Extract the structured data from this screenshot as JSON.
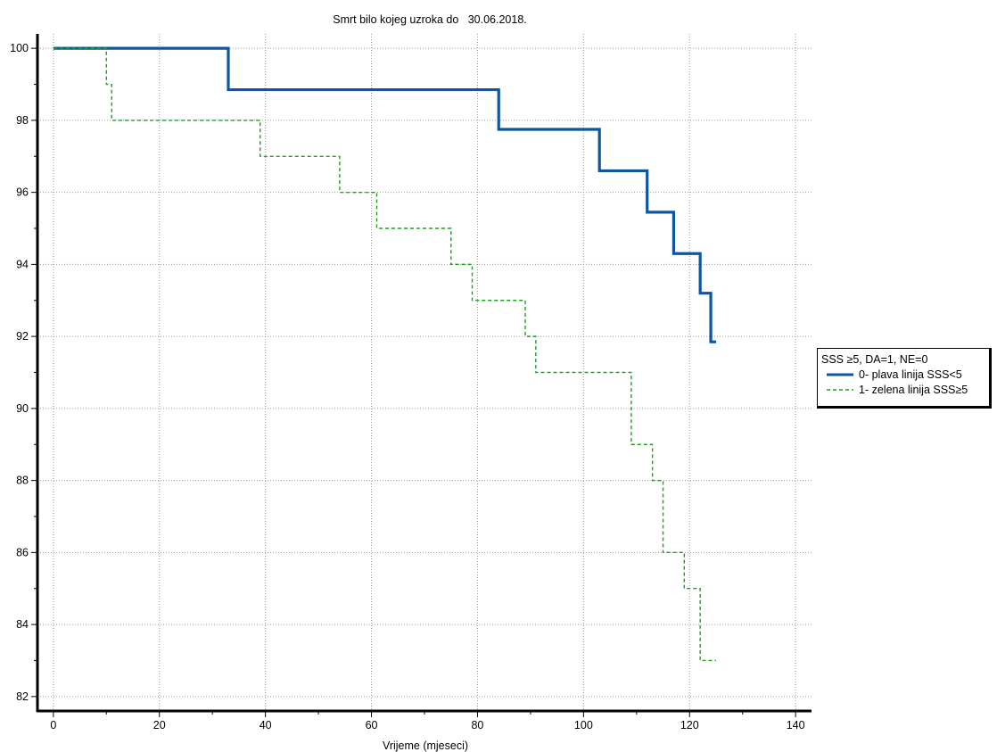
{
  "chart_data": {
    "type": "line",
    "step": true,
    "title": "Smrt bilo kojeg uzroka do   30.06.2018.",
    "xlabel": "Vrijeme (mjeseci)",
    "ylabel": "",
    "xlim": [
      -3,
      143
    ],
    "ylim": [
      81.6,
      100.4
    ],
    "x_ticks": [
      0,
      20,
      40,
      60,
      80,
      100,
      120,
      140
    ],
    "y_ticks": [
      82,
      84,
      86,
      88,
      90,
      92,
      94,
      96,
      98,
      100
    ],
    "x_tick_labels": [
      "0",
      "20",
      "40",
      "60",
      "80",
      "100",
      "120",
      "140"
    ],
    "y_tick_labels": [
      "82",
      "84",
      "86",
      "88",
      "90",
      "92",
      "94",
      "96",
      "98",
      "100"
    ],
    "grid": true,
    "legend_title": "SSS ≥5, DA=1, NE=0",
    "legend_position": "right",
    "series": [
      {
        "name": "0- plava linija SSS<5",
        "color": "#0d56a0",
        "style": "solid",
        "x": [
          0,
          33,
          84,
          103,
          112,
          117,
          122,
          124,
          125
        ],
        "y": [
          100,
          98.85,
          97.75,
          96.6,
          95.45,
          94.3,
          93.2,
          91.85,
          91.85
        ]
      },
      {
        "name": "1- zelena linija SSS≥5",
        "color": "#1aa31a",
        "style": "dashed",
        "x": [
          0,
          10,
          11,
          39,
          54,
          61,
          75,
          79,
          89,
          91,
          109,
          113,
          115,
          119,
          122,
          125
        ],
        "y": [
          100,
          99,
          98,
          97,
          96,
          95,
          94,
          93,
          92,
          91,
          89,
          88,
          86,
          85,
          83,
          83
        ]
      }
    ]
  }
}
